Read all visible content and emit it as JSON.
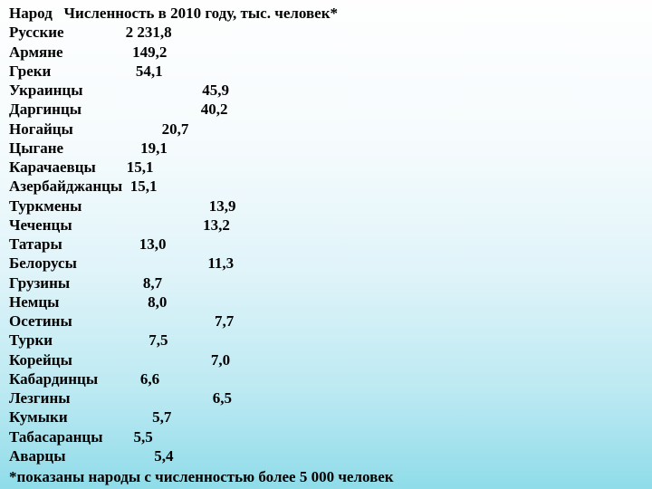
{
  "header": {
    "col1": "Народ",
    "col2": "Численность в 2010 году, тыс. человек*"
  },
  "rows": [
    {
      "name": "Русские",
      "pad": "                ",
      "value": "2 231,8"
    },
    {
      "name": "Армяне",
      "pad": "                  ",
      "value": "149,2"
    },
    {
      "name": "Греки",
      "pad": "                      ",
      "value": "54,1"
    },
    {
      "name": "Украинцы",
      "pad": "                               ",
      "value": "45,9"
    },
    {
      "name": "Даргинцы",
      "pad": "                               ",
      "value": "40,2"
    },
    {
      "name": "Ногайцы",
      "pad": "                       ",
      "value": "20,7"
    },
    {
      "name": "Цыгане",
      "pad": "                    ",
      "value": "19,1"
    },
    {
      "name": "Карачаевцы",
      "pad": "        ",
      "value": "15,1"
    },
    {
      "name": "Азербайджанцы",
      "pad": "  ",
      "value": "15,1"
    },
    {
      "name": "Туркмены",
      "pad": "                                 ",
      "value": "13,9"
    },
    {
      "name": "Чеченцы",
      "pad": "                                  ",
      "value": "13,2"
    },
    {
      "name": "Татары",
      "pad": "                    ",
      "value": "13,0"
    },
    {
      "name": "Белорусы",
      "pad": "                                  ",
      "value": "11,3"
    },
    {
      "name": "Грузины",
      "pad": "                   ",
      "value": "8,7"
    },
    {
      "name": "Немцы",
      "pad": "                       ",
      "value": "8,0"
    },
    {
      "name": "Осетины",
      "pad": "                                     ",
      "value": "7,7"
    },
    {
      "name": "Турки",
      "pad": "                         ",
      "value": "7,5"
    },
    {
      "name": "Корейцы",
      "pad": "                                    ",
      "value": "7,0"
    },
    {
      "name": "Кабардинцы",
      "pad": "           ",
      "value": "6,6"
    },
    {
      "name": "Лезгины",
      "pad": "                                     ",
      "value": "6,5"
    },
    {
      "name": "Кумыки",
      "pad": "                      ",
      "value": "5,7"
    },
    {
      "name": "Табасаранцы",
      "pad": "        ",
      "value": "5,5"
    },
    {
      "name": "Аварцы",
      "pad": "                       ",
      "value": "5,4"
    }
  ],
  "footer": "*показаны народы с численностью более 5 000 человек"
}
